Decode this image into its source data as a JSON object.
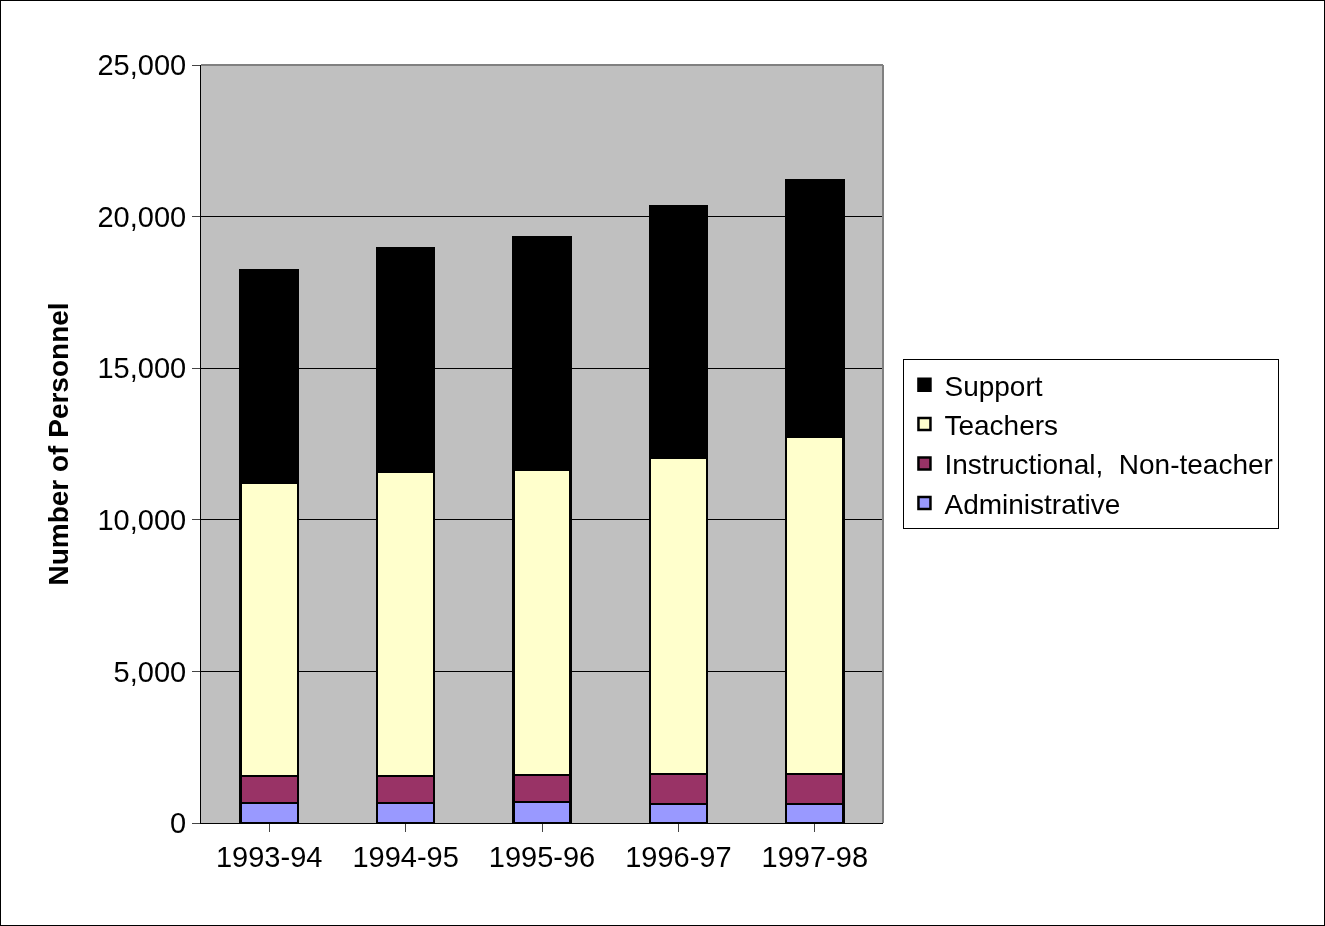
{
  "chart_data": {
    "type": "bar",
    "stacked": true,
    "ylabel": "Number of Personnel",
    "categories": [
      "1993-94",
      "1994-95",
      "1995-96",
      "1996-97",
      "1997-98"
    ],
    "series": [
      {
        "name": "Administrative",
        "color": "#9999ff",
        "values": [
          660,
          660,
          690,
          630,
          630
        ]
      },
      {
        "name": "Instructional,  Non-teacher",
        "color": "#993366",
        "values": [
          890,
          890,
          890,
          990,
          990
        ]
      },
      {
        "name": "Teachers",
        "color": "#ffffcc",
        "values": [
          9660,
          10030,
          10060,
          10420,
          11110
        ]
      },
      {
        "name": "Support",
        "color": "#000000",
        "values": [
          7030,
          7390,
          7690,
          8310,
          8480
        ]
      }
    ],
    "ylim": [
      0,
      25000
    ],
    "yticks": [
      {
        "value": 0,
        "label": "0"
      },
      {
        "value": 5000,
        "label": "5,000"
      },
      {
        "value": 10000,
        "label": "10,000"
      },
      {
        "value": 15000,
        "label": "15,000"
      },
      {
        "value": 20000,
        "label": "20,000"
      },
      {
        "value": 25000,
        "label": "25,000"
      }
    ],
    "grid": "y",
    "legend": "right"
  }
}
